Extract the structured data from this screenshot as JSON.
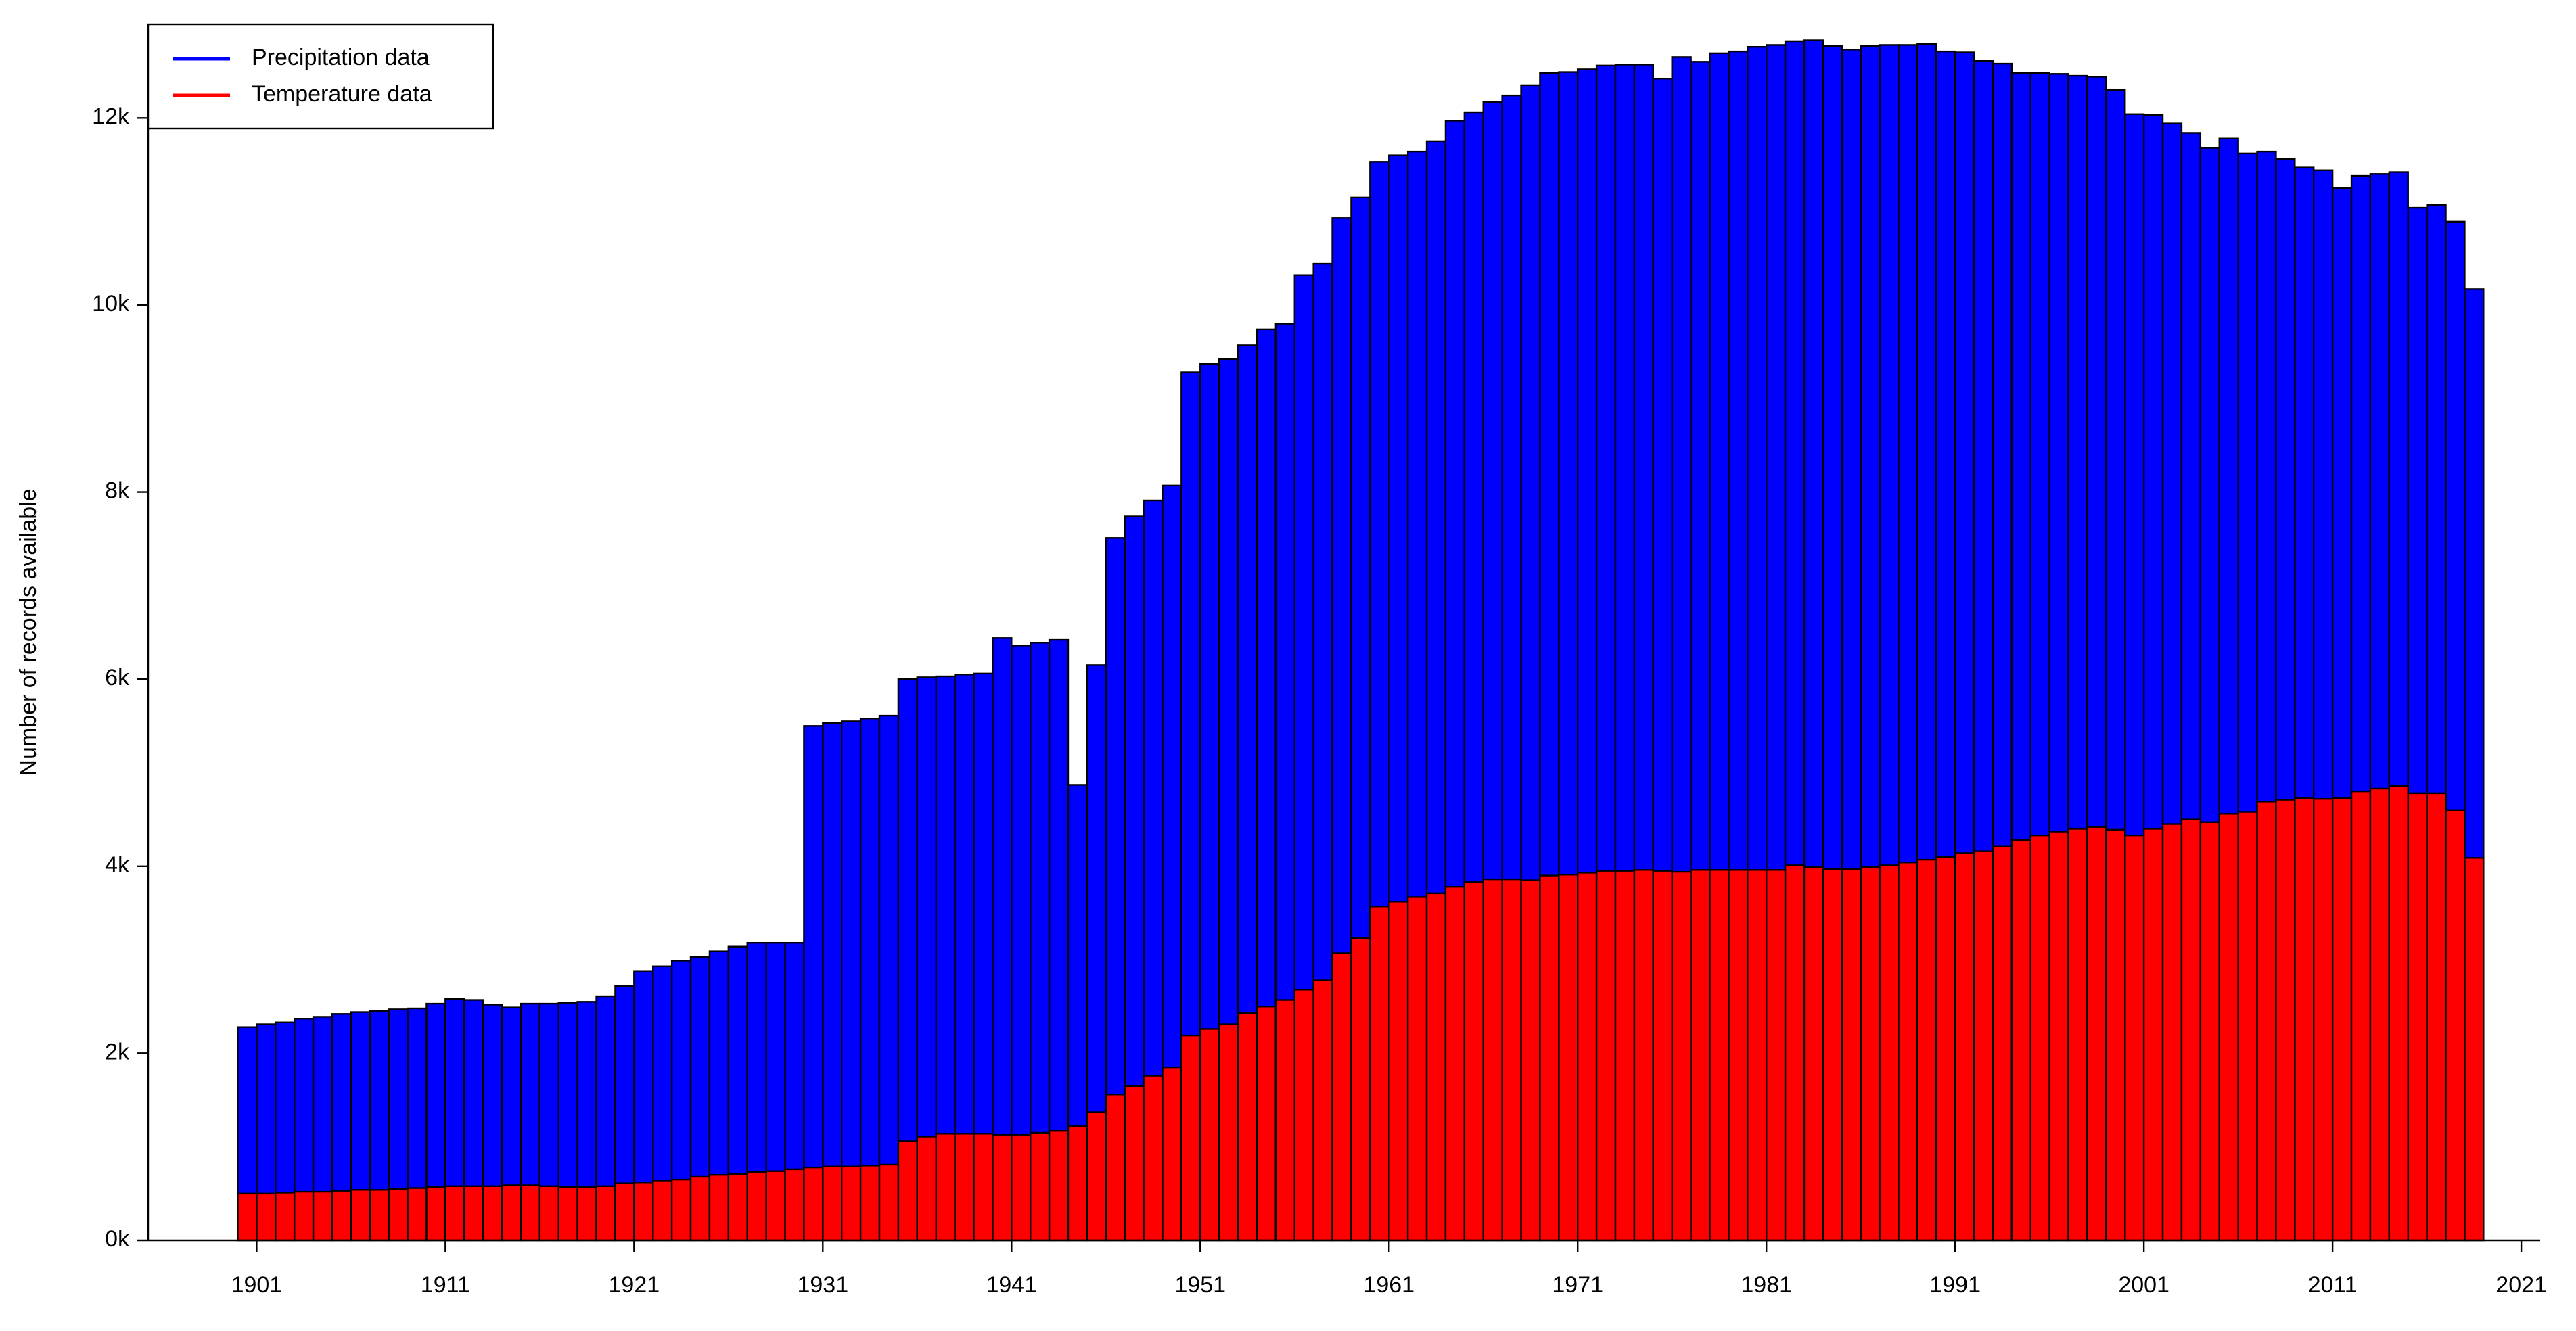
{
  "chart_data": {
    "type": "bar",
    "ylabel": "Number of records available",
    "legend": "top-left",
    "x": [
      1900,
      1901,
      1902,
      1903,
      1904,
      1905,
      1906,
      1907,
      1908,
      1909,
      1910,
      1911,
      1912,
      1913,
      1914,
      1915,
      1916,
      1917,
      1918,
      1919,
      1920,
      1921,
      1922,
      1923,
      1924,
      1925,
      1926,
      1927,
      1928,
      1929,
      1930,
      1931,
      1932,
      1933,
      1934,
      1935,
      1936,
      1937,
      1938,
      1939,
      1940,
      1941,
      1942,
      1943,
      1944,
      1945,
      1946,
      1947,
      1948,
      1949,
      1950,
      1951,
      1952,
      1953,
      1954,
      1955,
      1956,
      1957,
      1958,
      1959,
      1960,
      1961,
      1962,
      1963,
      1964,
      1965,
      1966,
      1967,
      1968,
      1969,
      1970,
      1971,
      1972,
      1973,
      1974,
      1975,
      1976,
      1977,
      1978,
      1979,
      1980,
      1981,
      1982,
      1983,
      1984,
      1985,
      1986,
      1987,
      1988,
      1989,
      1990,
      1991,
      1992,
      1993,
      1994,
      1995,
      1996,
      1997,
      1998,
      1999,
      2000,
      2001,
      2002,
      2003,
      2004,
      2005,
      2006,
      2007,
      2008,
      2009,
      2010,
      2011,
      2012,
      2013,
      2014,
      2015,
      2016,
      2017,
      2018
    ],
    "series": [
      {
        "name": "Precipitation data",
        "color": "#0000ff",
        "values": [
          2280,
          2310,
          2330,
          2370,
          2390,
          2420,
          2440,
          2450,
          2470,
          2480,
          2530,
          2580,
          2570,
          2520,
          2490,
          2530,
          2530,
          2540,
          2550,
          2610,
          2720,
          2880,
          2930,
          2990,
          3030,
          3090,
          3140,
          3180,
          3180,
          3180,
          5500,
          5530,
          5550,
          5580,
          5610,
          6000,
          6020,
          6030,
          6050,
          6060,
          6440,
          6360,
          6390,
          6420,
          4870,
          6150,
          7510,
          7740,
          7910,
          8070,
          9280,
          9370,
          9420,
          9570,
          9740,
          9800,
          10320,
          10440,
          10930,
          11150,
          11530,
          11600,
          11640,
          11750,
          11970,
          12060,
          12170,
          12240,
          12350,
          12480,
          12490,
          12520,
          12560,
          12570,
          12570,
          12420,
          12650,
          12600,
          12690,
          12710,
          12760,
          12780,
          12820,
          12830,
          12770,
          12730,
          12770,
          12780,
          12780,
          12790,
          12710,
          12700,
          12610,
          12580,
          12480,
          12480,
          12470,
          12450,
          12440,
          12300,
          12040,
          12030,
          11940,
          11840,
          11680,
          11780,
          11620,
          11640,
          11560,
          11470,
          11440,
          11250,
          11380,
          11400,
          11420,
          11040,
          11070,
          10890,
          10170
        ]
      },
      {
        "name": "Temperature data",
        "color": "#ff0000",
        "values": [
          500,
          500,
          510,
          520,
          520,
          530,
          540,
          540,
          550,
          560,
          570,
          580,
          580,
          580,
          590,
          590,
          580,
          570,
          570,
          580,
          610,
          620,
          640,
          650,
          680,
          700,
          710,
          730,
          740,
          760,
          780,
          790,
          790,
          800,
          810,
          1060,
          1110,
          1140,
          1140,
          1140,
          1130,
          1130,
          1150,
          1170,
          1220,
          1370,
          1560,
          1650,
          1760,
          1850,
          2190,
          2260,
          2310,
          2430,
          2500,
          2570,
          2680,
          2780,
          3070,
          3230,
          3570,
          3620,
          3670,
          3710,
          3780,
          3830,
          3860,
          3860,
          3850,
          3900,
          3910,
          3930,
          3950,
          3950,
          3960,
          3950,
          3940,
          3960,
          3960,
          3960,
          3960,
          3960,
          4010,
          3990,
          3970,
          3970,
          3990,
          4010,
          4040,
          4070,
          4100,
          4140,
          4160,
          4210,
          4280,
          4330,
          4370,
          4400,
          4420,
          4390,
          4330,
          4400,
          4450,
          4500,
          4470,
          4560,
          4580,
          4690,
          4710,
          4730,
          4720,
          4730,
          4800,
          4830,
          4860,
          4780,
          4780,
          4600,
          4090
        ]
      }
    ],
    "xlim": [
      1895,
      2022
    ],
    "xticks": [
      1901,
      1911,
      1921,
      1931,
      1941,
      1951,
      1961,
      1971,
      1981,
      1991,
      2001,
      2011,
      2021
    ],
    "ylim": [
      0,
      13000
    ],
    "yticks": [
      {
        "value": 0,
        "label": "0k"
      },
      {
        "value": 2000,
        "label": "2k"
      },
      {
        "value": 4000,
        "label": "4k"
      },
      {
        "value": 6000,
        "label": "6k"
      },
      {
        "value": 8000,
        "label": "8k"
      },
      {
        "value": 10000,
        "label": "10k"
      },
      {
        "value": 12000,
        "label": "12k"
      }
    ]
  }
}
